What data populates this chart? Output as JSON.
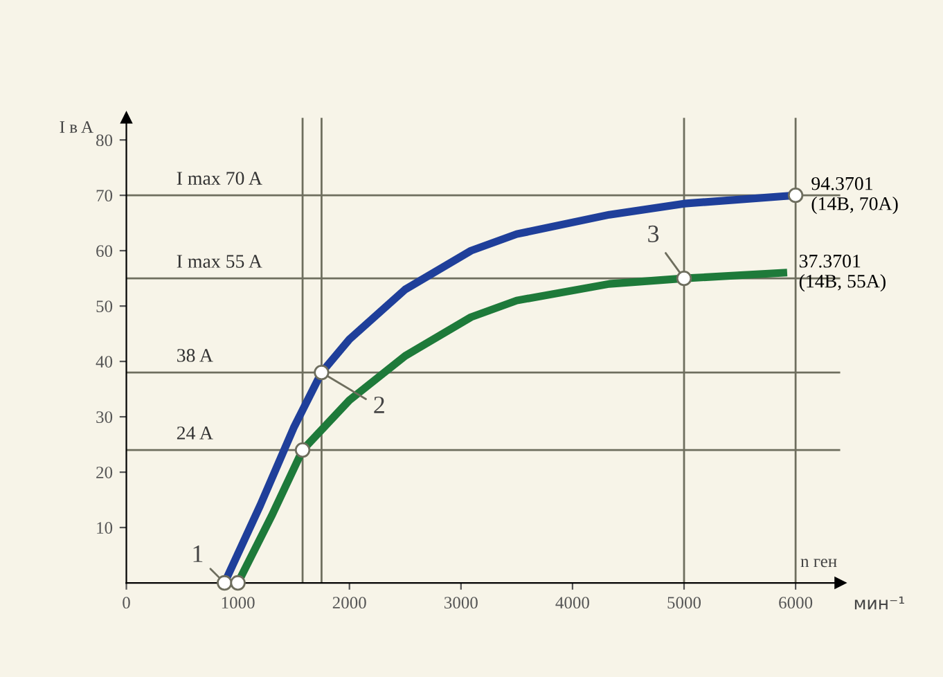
{
  "chart_data": {
    "type": "line",
    "xlabel": "n ген",
    "ylabel": "I в A",
    "xlim": [
      0,
      6400
    ],
    "ylim": [
      0,
      84
    ],
    "xticks": [
      0,
      1000,
      2000,
      3000,
      4000,
      5000,
      6000
    ],
    "yticks": [
      10,
      20,
      30,
      40,
      50,
      60,
      70,
      80
    ],
    "grid": false,
    "legend": false,
    "line_style": "solid",
    "series": [
      {
        "name": "94.3701\n(14В, 70А)",
        "color": "#1f3f9a",
        "x": [
          880,
          1200,
          1500,
          1750,
          2000,
          2500,
          3090,
          3500,
          4330,
          5000,
          6000
        ],
        "values": [
          0,
          14,
          28,
          38,
          44,
          53,
          60,
          63,
          66.5,
          68.5,
          70
        ]
      },
      {
        "name": "37.3701\n(14В, 55А)",
        "color": "#1e7a3a",
        "x": [
          1000,
          1300,
          1580,
          2000,
          2500,
          3090,
          3500,
          4330,
          5000,
          5890
        ],
        "values": [
          0,
          12,
          24,
          33,
          41,
          48,
          51,
          54,
          55,
          56
        ]
      },
      {
        "type": "scatter",
        "marker": "circle",
        "color": "#ffffff",
        "x": [
          880,
          1000,
          1580,
          1750,
          5000,
          6000
        ],
        "values": [
          0,
          0,
          24,
          38,
          55,
          70
        ]
      }
    ],
    "ref_lines": [
      {
        "axis": "y",
        "value": 70,
        "label": "I max 70 A",
        "color": "#6e6e5e"
      },
      {
        "axis": "y",
        "value": 55,
        "label": "I max 55 A",
        "color": "#6e6e5e"
      },
      {
        "axis": "y",
        "value": 38,
        "label": "38 A",
        "color": "#6e6e5e"
      },
      {
        "axis": "y",
        "value": 24,
        "label": "24 A",
        "color": "#6e6e5e"
      },
      {
        "axis": "x",
        "value": 1580,
        "color": "#6e6e5e"
      },
      {
        "axis": "x",
        "value": 1750,
        "color": "#6e6e5e"
      },
      {
        "axis": "x",
        "value": 5000,
        "color": "#6e6e5e"
      },
      {
        "axis": "x",
        "value": 6000,
        "color": "#6e6e5e"
      }
    ],
    "annotations": [
      {
        "text": "1",
        "x": 880,
        "y": 0
      },
      {
        "text": "2",
        "x": 1750,
        "y": 38
      },
      {
        "text": "3",
        "x": 5000,
        "y": 55
      },
      "мин⁻¹"
    ]
  }
}
